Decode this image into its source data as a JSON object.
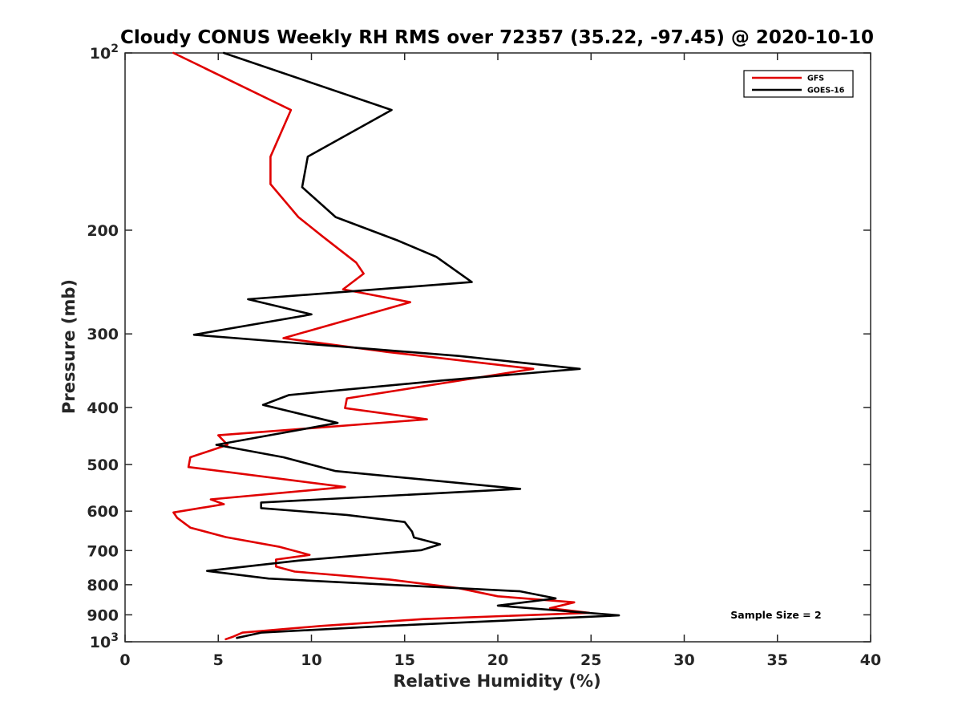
{
  "chart_data": {
    "type": "line",
    "title": "Cloudy CONUS Weekly RH RMS over 72357 (35.22, -97.45) @ 2020-10-10",
    "xlabel": "Relative Humidity (%)",
    "ylabel": "Pressure (mb)",
    "xlim": [
      0,
      40
    ],
    "ylim": [
      100,
      1000
    ],
    "y_scale": "log",
    "y_reversed": true,
    "grid": false,
    "legend_position": "top-right",
    "x_ticks": [
      "0",
      "5",
      "10",
      "15",
      "20",
      "25",
      "30",
      "35",
      "40"
    ],
    "y_ticks": [
      {
        "value": 100,
        "base": "10",
        "exp": "2"
      },
      {
        "value": 200,
        "label": "200"
      },
      {
        "value": 300,
        "label": "300"
      },
      {
        "value": 400,
        "label": "400"
      },
      {
        "value": 500,
        "label": "500"
      },
      {
        "value": 600,
        "label": "600"
      },
      {
        "value": 700,
        "label": "700"
      },
      {
        "value": 800,
        "label": "800"
      },
      {
        "value": 900,
        "label": "900"
      },
      {
        "value": 1000,
        "base": "10",
        "exp": "3"
      }
    ],
    "series": [
      {
        "name": "GFS",
        "color": "#e00000",
        "points": [
          [
            2.6,
            100
          ],
          [
            8.9,
            125
          ],
          [
            7.8,
            150
          ],
          [
            7.8,
            167
          ],
          [
            9.3,
            190
          ],
          [
            10.6,
            205
          ],
          [
            12.4,
            227
          ],
          [
            12.8,
            237
          ],
          [
            11.7,
            252
          ],
          [
            15.3,
            265
          ],
          [
            8.5,
            305
          ],
          [
            14.1,
            322
          ],
          [
            21.9,
            344
          ],
          [
            11.9,
            386
          ],
          [
            11.8,
            401
          ],
          [
            16.2,
            419
          ],
          [
            5.0,
            446
          ],
          [
            5.5,
            463
          ],
          [
            3.5,
            486
          ],
          [
            3.4,
            505
          ],
          [
            11.8,
            546
          ],
          [
            4.6,
            573
          ],
          [
            5.3,
            584
          ],
          [
            2.6,
            603
          ],
          [
            2.8,
            616
          ],
          [
            3.5,
            640
          ],
          [
            5.4,
            664
          ],
          [
            8.3,
            690
          ],
          [
            9.9,
            712
          ],
          [
            8.1,
            725
          ],
          [
            8.1,
            745
          ],
          [
            9.1,
            760
          ],
          [
            14.2,
            784
          ],
          [
            17.9,
            811
          ],
          [
            20.0,
            837
          ],
          [
            24.1,
            857
          ],
          [
            22.8,
            877
          ],
          [
            24.9,
            893
          ],
          [
            16.0,
            915
          ],
          [
            10.5,
            940
          ],
          [
            6.3,
            965
          ],
          [
            5.8,
            980
          ],
          [
            5.4,
            990
          ]
        ]
      },
      {
        "name": "GOES-16",
        "color": "#000000",
        "points": [
          [
            5.3,
            100
          ],
          [
            14.3,
            125
          ],
          [
            9.8,
            150
          ],
          [
            9.5,
            169
          ],
          [
            11.3,
            190
          ],
          [
            14.6,
            208
          ],
          [
            16.7,
            222
          ],
          [
            18.6,
            245
          ],
          [
            6.6,
            262
          ],
          [
            10.0,
            278
          ],
          [
            3.7,
            301
          ],
          [
            17.9,
            327
          ],
          [
            24.4,
            344
          ],
          [
            17.0,
            360
          ],
          [
            8.8,
            381
          ],
          [
            7.4,
            396
          ],
          [
            11.4,
            425
          ],
          [
            4.9,
            463
          ],
          [
            8.5,
            486
          ],
          [
            11.3,
            513
          ],
          [
            21.2,
            550
          ],
          [
            7.3,
            580
          ],
          [
            7.3,
            593
          ],
          [
            11.9,
            609
          ],
          [
            15.0,
            626
          ],
          [
            15.4,
            650
          ],
          [
            15.5,
            665
          ],
          [
            16.9,
            683
          ],
          [
            15.9,
            699
          ],
          [
            9.3,
            728
          ],
          [
            4.4,
            758
          ],
          [
            7.7,
            781
          ],
          [
            21.2,
            821
          ],
          [
            23.1,
            844
          ],
          [
            20.0,
            868
          ],
          [
            26.5,
            902
          ],
          [
            14.0,
            940
          ],
          [
            7.3,
            965
          ],
          [
            6.0,
            985
          ]
        ]
      }
    ],
    "annotation": "Sample Size = 2"
  }
}
